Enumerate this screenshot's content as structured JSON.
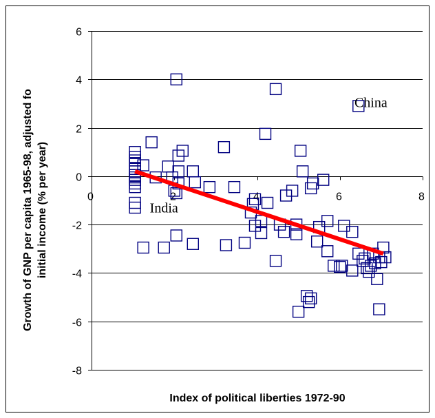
{
  "chart_data": {
    "type": "scatter",
    "title": "",
    "xlabel": "Index of political liberties 1972-90",
    "ylabel": "Growth of GNP per capita 1965-98, adjusted fo initial income (% per year)",
    "ylabel_lines": [
      "Growth of GNP per capita 1965-98, adjusted fo",
      "initial income (% per year)"
    ],
    "xlim": [
      0,
      8
    ],
    "ylim": [
      -8,
      6
    ],
    "x_ticks": [
      "0",
      "2",
      "4",
      "6",
      "8"
    ],
    "y_ticks": [
      "-8",
      "-6",
      "-4",
      "-2",
      "0",
      "2",
      "4",
      "6"
    ],
    "grid": "horizontal",
    "legend": "none",
    "marker_color": "#000080",
    "trend_color": "#ff0000",
    "annotations": [
      {
        "text": "China",
        "x": 6.75,
        "y": 2.85
      },
      {
        "text": "India",
        "x": 1.75,
        "y": -1.5
      }
    ],
    "points": [
      [
        1.05,
        1.0
      ],
      [
        1.05,
        0.8
      ],
      [
        1.05,
        0.65
      ],
      [
        1.05,
        0.5
      ],
      [
        1.05,
        0.3
      ],
      [
        1.05,
        0.2
      ],
      [
        1.05,
        0.05
      ],
      [
        1.05,
        -0.05
      ],
      [
        1.05,
        -0.15
      ],
      [
        1.05,
        -0.3
      ],
      [
        1.05,
        -0.45
      ],
      [
        1.05,
        -1.1
      ],
      [
        1.05,
        -1.3
      ],
      [
        1.25,
        0.45
      ],
      [
        1.45,
        1.4
      ],
      [
        1.55,
        -0.05
      ],
      [
        1.85,
        0.4
      ],
      [
        1.95,
        -0.05
      ],
      [
        2.05,
        4.0
      ],
      [
        2.1,
        0.85
      ],
      [
        2.2,
        1.05
      ],
      [
        2.1,
        0.2
      ],
      [
        2.0,
        -0.6
      ],
      [
        2.05,
        -0.7
      ],
      [
        2.1,
        -0.3
      ],
      [
        2.45,
        0.2
      ],
      [
        2.5,
        -0.25
      ],
      [
        2.85,
        -0.45
      ],
      [
        1.25,
        -2.95
      ],
      [
        1.75,
        -2.95
      ],
      [
        2.05,
        -2.45
      ],
      [
        2.45,
        -2.8
      ],
      [
        3.2,
        1.2
      ],
      [
        3.45,
        -0.45
      ],
      [
        3.7,
        -2.75
      ],
      [
        3.25,
        -2.85
      ],
      [
        3.95,
        -0.95
      ],
      [
        3.9,
        -1.15
      ],
      [
        3.85,
        -1.5
      ],
      [
        3.95,
        -2.05
      ],
      [
        4.1,
        -1.85
      ],
      [
        4.1,
        -2.35
      ],
      [
        4.2,
        1.75
      ],
      [
        4.25,
        -1.1
      ],
      [
        4.45,
        3.6
      ],
      [
        4.45,
        -3.5
      ],
      [
        4.55,
        -2.0
      ],
      [
        4.65,
        -2.3
      ],
      [
        4.7,
        -0.8
      ],
      [
        4.85,
        -0.6
      ],
      [
        4.95,
        -2.0
      ],
      [
        4.95,
        -2.4
      ],
      [
        5.05,
        1.05
      ],
      [
        5.1,
        0.2
      ],
      [
        5.3,
        -0.5
      ],
      [
        5.35,
        -0.3
      ],
      [
        5.45,
        -2.7
      ],
      [
        5.5,
        -2.1
      ],
      [
        5.6,
        -0.15
      ],
      [
        5.7,
        -1.85
      ],
      [
        5.7,
        -3.1
      ],
      [
        5.85,
        -3.7
      ],
      [
        5.0,
        -5.6
      ],
      [
        5.2,
        -4.95
      ],
      [
        5.25,
        -5.2
      ],
      [
        5.3,
        -5.05
      ],
      [
        6.1,
        -2.05
      ],
      [
        6.3,
        -2.3
      ],
      [
        6.45,
        2.9
      ],
      [
        6.05,
        -3.7
      ],
      [
        6.45,
        -3.2
      ],
      [
        6.55,
        -3.5
      ],
      [
        6.6,
        -3.4
      ],
      [
        6.65,
        -3.8
      ],
      [
        6.7,
        -3.95
      ],
      [
        6.75,
        -3.7
      ],
      [
        6.8,
        -3.2
      ],
      [
        6.85,
        -3.6
      ],
      [
        6.95,
        -3.35
      ],
      [
        7.0,
        -3.55
      ],
      [
        7.05,
        -2.95
      ],
      [
        7.1,
        -3.35
      ],
      [
        6.9,
        -4.25
      ],
      [
        6.95,
        -5.5
      ],
      [
        6.3,
        -3.9
      ],
      [
        6.0,
        -3.75
      ]
    ],
    "trend_line": {
      "x": [
        1.05,
        7.05
      ],
      "y": [
        0.2,
        -3.2
      ]
    }
  }
}
